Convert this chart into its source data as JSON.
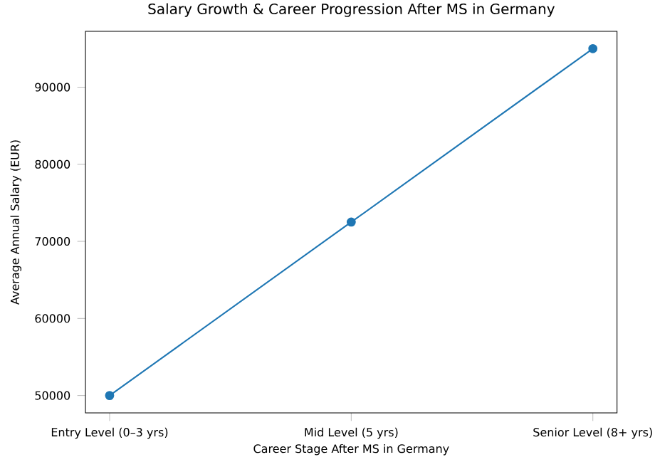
{
  "chart_data": {
    "type": "line",
    "title": "Salary Growth & Career Progression After MS in Germany",
    "xlabel": "Career Stage After MS in Germany",
    "ylabel": "Average Annual Salary (EUR)",
    "categories": [
      "Entry Level (0–3 yrs)",
      "Mid Level (5 yrs)",
      "Senior Level (8+ yrs)"
    ],
    "values": [
      50000,
      72500,
      95000
    ],
    "color": "#1f77b4",
    "marker": "circle",
    "ylim": [
      47750,
      97250
    ],
    "yticks": [
      50000,
      60000,
      70000,
      80000,
      90000
    ],
    "grid": false
  }
}
